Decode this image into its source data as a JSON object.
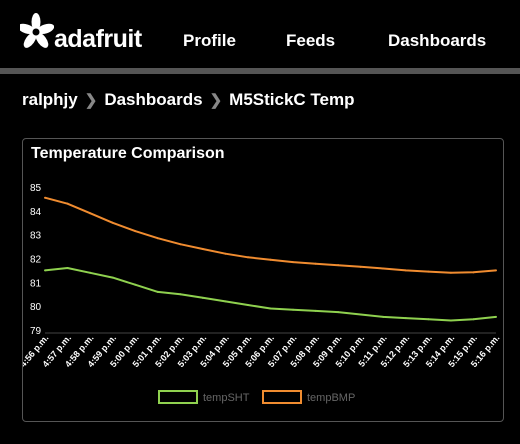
{
  "header": {
    "logo_text": "adafruit",
    "nav": [
      {
        "label": "Profile"
      },
      {
        "label": "Feeds"
      },
      {
        "label": "Dashboards"
      }
    ]
  },
  "breadcrumb": {
    "user": "ralphjy",
    "section": "Dashboards",
    "page": "M5StickC Temp"
  },
  "panel": {
    "title": "Temperature Comparison"
  },
  "colors": {
    "background": "#000000",
    "divider": "#555555",
    "series_tempSHT": "#8fd14f",
    "series_tempBMP": "#f08c30"
  },
  "chart_data": {
    "type": "line",
    "title": "Temperature Comparison",
    "x": [
      "4:56 p.m.",
      "4:57 p.m.",
      "4:58 p.m.",
      "4:59 p.m.",
      "5:00 p.m.",
      "5:01 p.m.",
      "5:02 p.m.",
      "5:03 p.m.",
      "5:04 p.m.",
      "5:05 p.m.",
      "5:06 p.m.",
      "5:07 p.m.",
      "5:08 p.m.",
      "5:09 p.m.",
      "5:10 p.m.",
      "5:11 p.m.",
      "5:12 p.m.",
      "5:13 p.m.",
      "5:14 p.m.",
      "5:15 p.m.",
      "5:16 p.m."
    ],
    "ylim": [
      79,
      85
    ],
    "yticks": [
      79,
      80,
      81,
      82,
      83,
      84,
      85
    ],
    "grid": false,
    "legend": "bottom-center",
    "series": [
      {
        "name": "tempSHT",
        "color": "#8fd14f",
        "values": [
          81.5,
          81.6,
          81.4,
          81.2,
          80.9,
          80.6,
          80.5,
          80.35,
          80.2,
          80.05,
          79.9,
          79.85,
          79.8,
          79.75,
          79.65,
          79.55,
          79.5,
          79.45,
          79.4,
          79.45,
          79.55
        ]
      },
      {
        "name": "tempBMP",
        "color": "#f08c30",
        "values": [
          84.55,
          84.3,
          83.9,
          83.5,
          83.15,
          82.85,
          82.6,
          82.4,
          82.2,
          82.05,
          81.95,
          81.85,
          81.78,
          81.72,
          81.65,
          81.58,
          81.5,
          81.45,
          81.4,
          81.42,
          81.5
        ]
      }
    ]
  }
}
